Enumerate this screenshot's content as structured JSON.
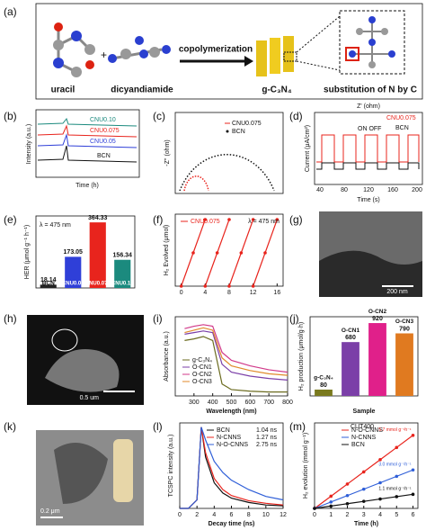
{
  "panel_a": {
    "label": "(a)",
    "reactant_1": "uracil",
    "plus": "+",
    "reactant_2": "dicyandiamide",
    "arrow": "copolymerization",
    "product": "g-C₃N₄",
    "note": "substitution of N by C"
  },
  "panel_b": {
    "label": "(b)",
    "legend": [
      "CNU0.10",
      "CNU0.075",
      "CNU0.05",
      "BCN"
    ],
    "y_label": "Intensity (a.u.)",
    "x_label": "Time (h)"
  },
  "panel_c": {
    "label": "(c)",
    "legend": [
      "CNU0.075",
      "BCN"
    ],
    "y_label": "-Z'' (ohm)",
    "x_label": "Z' (ohm)"
  },
  "panel_d": {
    "label": "(d)",
    "legend": [
      "CNU0.075",
      "BCN"
    ],
    "on_off": "ON  OFF",
    "y_label": "Current (μA/cm²)",
    "x_label": "Time (s)",
    "xticks": [
      40,
      80,
      120,
      160,
      200
    ]
  },
  "panel_g": {
    "label": "(g)",
    "scale": "200 nm"
  },
  "panel_h": {
    "label": "(h)",
    "scale": "0.5 um"
  },
  "panel_k": {
    "label": "(k)",
    "scale": "0.2 μm"
  },
  "charts": {
    "e": {
      "type": "bar",
      "label": "(e)",
      "note": "λ = 475 nm",
      "y_label": "HER (μmol g⁻¹ h⁻¹)",
      "categories": [
        "BCN",
        "CNU0.05",
        "CNU0.075",
        "CNU0.10"
      ],
      "values": [
        18.14,
        173.05,
        364.33,
        156.34
      ],
      "colors": [
        "#222222",
        "#2f3fd8",
        "#e8241d",
        "#1b8a7e"
      ],
      "ylim": [
        0,
        400
      ]
    },
    "f": {
      "type": "line",
      "label": "(f)",
      "note": "λ = 475 nm",
      "y_label": "H₂ Evolved (μmol)",
      "x": [
        0,
        2,
        4,
        4,
        4,
        6,
        8,
        8,
        8,
        10,
        12,
        12,
        12,
        14,
        16
      ],
      "series": [
        {
          "name": "CNU0.075",
          "color": "#e8241d",
          "values": [
            0,
            37,
            74,
            null,
            0,
            37,
            74,
            null,
            0,
            37,
            74,
            null,
            0,
            37,
            74
          ]
        }
      ],
      "xlim": [
        -1,
        17
      ],
      "ylim": [
        0,
        80
      ],
      "xticks": [
        0,
        4,
        8,
        12,
        16
      ],
      "markers": true
    },
    "i": {
      "type": "line",
      "label": "(i)",
      "y_label": "Absorbance (a.u.)",
      "x_label": "Wavelength (nm)",
      "x": [
        250,
        300,
        350,
        400,
        450,
        500,
        600,
        700,
        800
      ],
      "series": [
        {
          "name": "g-C₃N₄",
          "color": "#6b6b1f",
          "values": [
            0.7,
            0.72,
            0.75,
            0.7,
            0.15,
            0.08,
            0.06,
            0.05,
            0.05
          ]
        },
        {
          "name": "O-CN1",
          "color": "#7b3fa8",
          "values": [
            0.78,
            0.8,
            0.82,
            0.8,
            0.4,
            0.3,
            0.25,
            0.22,
            0.2
          ]
        },
        {
          "name": "O-CN2",
          "color": "#d13a8a",
          "values": [
            0.85,
            0.88,
            0.9,
            0.88,
            0.55,
            0.45,
            0.38,
            0.33,
            0.3
          ]
        },
        {
          "name": "O-CN3",
          "color": "#e08a2a",
          "values": [
            0.8,
            0.83,
            0.86,
            0.83,
            0.48,
            0.38,
            0.32,
            0.28,
            0.26
          ]
        }
      ],
      "xlim": [
        200,
        800
      ],
      "ylim": [
        0,
        1
      ],
      "xticks": [
        300,
        400,
        500,
        600,
        700,
        800
      ]
    },
    "j": {
      "type": "bar",
      "label": "(j)",
      "y_label": "H₂ production (μmol/g·h)",
      "x_label": "Sample",
      "categories": [
        "g-C₃N₄",
        "O-CN1",
        "O-CN2",
        "O-CN3"
      ],
      "values": [
        80,
        680,
        920,
        790
      ],
      "colors": [
        "#7a7a1e",
        "#7b3fa8",
        "#e0208a",
        "#e07a20"
      ],
      "ylim": [
        0,
        1000
      ]
    },
    "l": {
      "type": "line",
      "label": "(l)",
      "y_label": "TCSPC intensity (a.u.)",
      "x_label": "Decay time (ns)",
      "x": [
        0,
        1,
        2,
        2.5,
        3,
        4,
        5,
        6,
        8,
        10,
        12
      ],
      "series": [
        {
          "name": "BCN",
          "color": "#111111",
          "values": [
            0,
            0,
            0.1,
            0.95,
            0.6,
            0.3,
            0.18,
            0.12,
            0.07,
            0.04,
            0.03
          ]
        },
        {
          "name": "N-CNNS",
          "color": "#e8241d",
          "values": [
            0,
            0,
            0.1,
            0.95,
            0.65,
            0.35,
            0.22,
            0.15,
            0.09,
            0.06,
            0.04
          ]
        },
        {
          "name": "N-O-CNNS",
          "color": "#2f5fd8",
          "values": [
            0,
            0,
            0.1,
            0.95,
            0.8,
            0.55,
            0.42,
            0.33,
            0.22,
            0.14,
            0.1
          ]
        }
      ],
      "lifetimes": [
        "1.04 ns",
        "1.27 ns",
        "2.75 ns"
      ],
      "xlim": [
        0,
        12
      ],
      "ylim": [
        0,
        1
      ],
      "xticks": [
        0,
        2,
        4,
        6,
        8,
        10,
        12
      ]
    },
    "m": {
      "type": "line",
      "label": "(m)",
      "note": "CUT400",
      "y_label": "H₂ evolution (mmol g⁻¹)",
      "x_label": "Time (h)",
      "x": [
        0,
        1,
        2,
        3,
        4,
        5,
        6
      ],
      "series": [
        {
          "name": "N-O-CNNS",
          "color": "#e8241d",
          "values": [
            0,
            5.7,
            11.4,
            17.1,
            22.8,
            28.5,
            34.2
          ]
        },
        {
          "name": "N-CNNS",
          "color": "#2f5fd8",
          "values": [
            0,
            3,
            6,
            9,
            12,
            15,
            18
          ]
        },
        {
          "name": "BCN",
          "color": "#111111",
          "values": [
            0,
            1.1,
            2.2,
            3.3,
            4.4,
            5.5,
            6.6
          ]
        }
      ],
      "rates": [
        "5.7 mmol g⁻¹h⁻¹",
        "3.0 mmol g⁻¹h⁻¹",
        "1.1 mmol g⁻¹h⁻¹"
      ],
      "xlim": [
        0,
        6.3
      ],
      "ylim": [
        0,
        40
      ],
      "xticks": [
        0,
        1,
        2,
        3,
        4,
        5,
        6
      ],
      "markers": true
    }
  }
}
